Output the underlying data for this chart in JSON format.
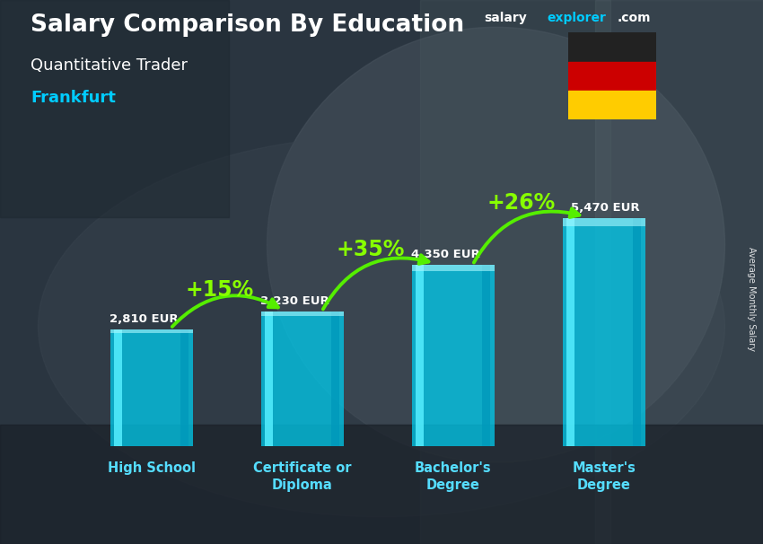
{
  "title_main": "Salary Comparison By Education",
  "title_sub": "Quantitative Trader",
  "title_city": "Frankfurt",
  "ylabel": "Average Monthly Salary",
  "categories": [
    "High School",
    "Certificate or\nDiploma",
    "Bachelor's\nDegree",
    "Master's\nDegree"
  ],
  "values": [
    2810,
    3230,
    4350,
    5470
  ],
  "labels": [
    "2,810 EUR",
    "3,230 EUR",
    "4,350 EUR",
    "5,470 EUR"
  ],
  "pct_labels": [
    "+15%",
    "+35%",
    "+26%"
  ],
  "bar_color_main": "#00ccee",
  "bar_color_light": "#55eeff",
  "bar_color_dark": "#0099bb",
  "bar_color_side": "#007799",
  "bg_color": "#2a3a4a",
  "title_color": "#ffffff",
  "sub_title_color": "#ffffff",
  "city_color": "#00ccff",
  "label_color": "#ffffff",
  "pct_color": "#88ff00",
  "arrow_color": "#55ee00",
  "ylim_max": 6800,
  "bar_width": 0.55,
  "flag_colors": [
    "#222222",
    "#cc0000",
    "#ffcc00"
  ],
  "website_salary_color": "#ffffff",
  "website_explorer_color": "#00ccff",
  "website_com_color": "#ffffff",
  "tick_color": "#55ddff"
}
